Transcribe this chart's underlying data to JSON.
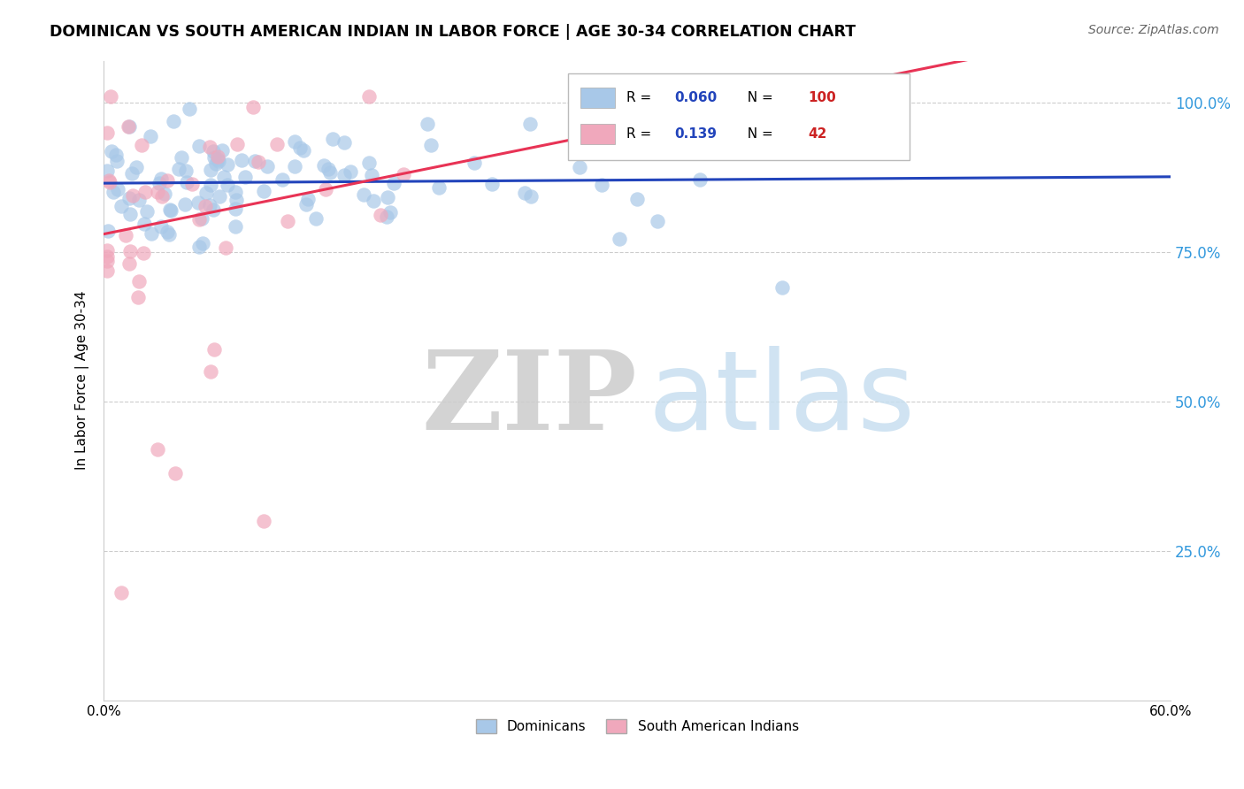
{
  "title": "DOMINICAN VS SOUTH AMERICAN INDIAN IN LABOR FORCE | AGE 30-34 CORRELATION CHART",
  "source": "Source: ZipAtlas.com",
  "ylabel": "In Labor Force | Age 30-34",
  "x_min": 0.0,
  "x_max": 0.6,
  "y_min": 0.0,
  "y_max": 1.07,
  "legend_R_blue": "0.060",
  "legend_N_blue": "100",
  "legend_R_pink": "0.139",
  "legend_N_pink": "42",
  "blue_color": "#a8c8e8",
  "pink_color": "#f0a8bc",
  "trend_blue": "#2244bb",
  "trend_pink": "#e83355",
  "watermark_ZIP": "ZIP",
  "watermark_atlas": "atlas",
  "blue_trend_slope": 0.018,
  "blue_trend_intercept": 0.865,
  "pink_trend_slope": 0.6,
  "pink_trend_intercept": 0.78
}
